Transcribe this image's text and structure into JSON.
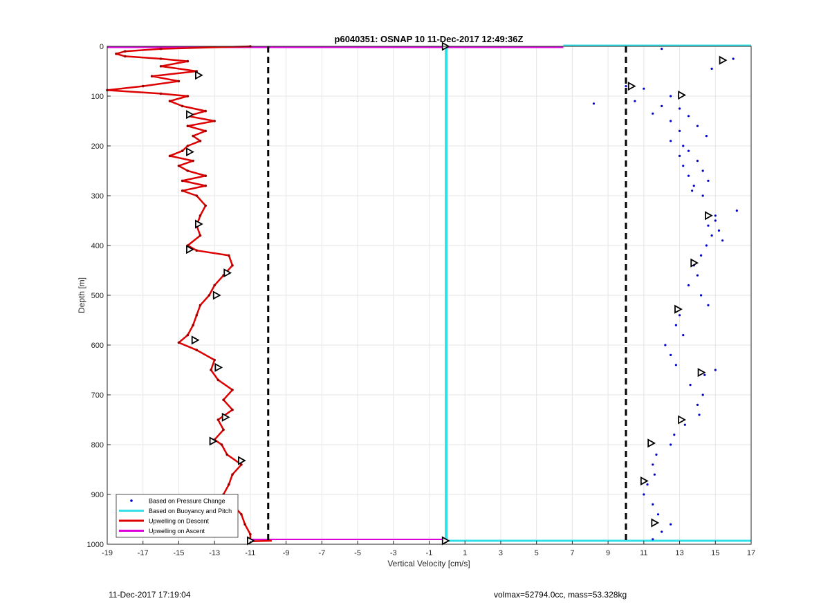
{
  "chart_data": {
    "type": "line",
    "title": "p6040351: OSNAP 10 11-Dec-2017 12:49:36Z",
    "xlabel": "Vertical Velocity [cm/s]",
    "ylabel": "Depth [m]",
    "xlim": [
      -19,
      17
    ],
    "ylim": [
      1000,
      0
    ],
    "y_reversed": true,
    "xticks": [
      -19,
      -17,
      -15,
      -13,
      -11,
      -9,
      -7,
      -5,
      -3,
      -1,
      1,
      3,
      5,
      7,
      9,
      11,
      13,
      15,
      17
    ],
    "yticks": [
      0,
      100,
      200,
      300,
      400,
      500,
      600,
      700,
      800,
      900,
      1000
    ],
    "grid": true,
    "legend_position": "bottom-left",
    "legend": [
      {
        "label": "Based on Pressure Change",
        "color": "#0000cc",
        "style": "dot"
      },
      {
        "label": "Based on Buoyancy and Pitch",
        "color": "#33e0e8",
        "style": "line"
      },
      {
        "label": "Upwelling on Descent",
        "color": "#dd0000",
        "style": "line"
      },
      {
        "label": "Upwelling on Ascent",
        "color": "#dd00dd",
        "style": "line"
      }
    ],
    "reference_lines": [
      {
        "x": -10,
        "color": "#000000",
        "style": "dashed"
      },
      {
        "x": 10,
        "color": "#000000",
        "style": "dashed"
      }
    ],
    "series": [
      {
        "name": "Upwelling on Descent",
        "color": "#dd0000",
        "depth": [
          0,
          5,
          10,
          15,
          20,
          25,
          30,
          40,
          50,
          60,
          70,
          80,
          88,
          95,
          100,
          110,
          120,
          130,
          140,
          150,
          160,
          170,
          180,
          190,
          200,
          210,
          220,
          230,
          240,
          250,
          260,
          270,
          280,
          290,
          300,
          320,
          340,
          360,
          380,
          400,
          410,
          420,
          440,
          460,
          480,
          500,
          520,
          540,
          560,
          580,
          595,
          610,
          630,
          650,
          670,
          690,
          710,
          730,
          750,
          770,
          790,
          800,
          820,
          840,
          860,
          880,
          900,
          920,
          940,
          960,
          980,
          990
        ],
        "velocity": [
          -11,
          -16,
          -18,
          -18.5,
          -18,
          -16,
          -14.5,
          -16,
          -14,
          -16.5,
          -15,
          -17,
          -19,
          -16,
          -14.5,
          -15.5,
          -14.8,
          -13.5,
          -14.5,
          -13,
          -14.5,
          -13.5,
          -14.2,
          -13.8,
          -14.5,
          -14.8,
          -15.5,
          -14.2,
          -15,
          -14.5,
          -13.5,
          -14.8,
          -13.5,
          -14.8,
          -14,
          -13.5,
          -13.8,
          -14,
          -13.8,
          -14.5,
          -14,
          -12.2,
          -12,
          -12.5,
          -13,
          -13.3,
          -13.8,
          -14,
          -14.2,
          -14.5,
          -15,
          -14,
          -13,
          -13.2,
          -12.8,
          -12,
          -12.5,
          -12,
          -12.8,
          -12.5,
          -13,
          -12.6,
          -12.3,
          -11.5,
          -12,
          -12.2,
          -12.5,
          -12,
          -11.5,
          -11.3,
          -11,
          -11
        ],
        "markers": [
          [
            -13.9,
            58
          ],
          [
            -14.4,
            137
          ],
          [
            -14.4,
            212
          ],
          [
            -13.9,
            357
          ],
          [
            -14.4,
            408
          ],
          [
            -12.3,
            455
          ],
          [
            -12.9,
            500
          ],
          [
            -14.1,
            590
          ],
          [
            -12.8,
            645
          ],
          [
            -12.4,
            745
          ],
          [
            -13.1,
            793
          ],
          [
            -11.5,
            832
          ]
        ]
      },
      {
        "name": "Upwelling on Ascent",
        "color": "#dd00dd",
        "depth": [
          0,
          0,
          993,
          993
        ],
        "velocity": [
          -19,
          6.5,
          -11,
          -0.2
        ]
      },
      {
        "name": "Based on Buoyancy and Pitch",
        "color": "#33e0e8",
        "depth": [
          0,
          0,
          993,
          993,
          0
        ],
        "velocity": [
          6.5,
          17,
          -0.2,
          17,
          -0.05
        ]
      },
      {
        "name": "Based on Pressure Change",
        "color": "#0000cc",
        "depth": [
          5,
          25,
          45,
          80,
          85,
          100,
          110,
          115,
          120,
          125,
          135,
          140,
          150,
          160,
          170,
          180,
          190,
          200,
          210,
          220,
          230,
          240,
          250,
          260,
          270,
          280,
          290,
          300,
          330,
          340,
          350,
          360,
          370,
          380,
          390,
          400,
          420,
          440,
          460,
          480,
          500,
          520,
          540,
          560,
          580,
          600,
          620,
          640,
          650,
          660,
          680,
          700,
          720,
          740,
          760,
          780,
          800,
          820,
          840,
          860,
          880,
          900,
          920,
          940,
          960,
          975,
          990
        ],
        "velocity": [
          12,
          16,
          14.8,
          10,
          11,
          12.5,
          10.5,
          8.2,
          12,
          13,
          11.5,
          13.5,
          12.5,
          14,
          13,
          14.5,
          12.5,
          13.2,
          13.5,
          13,
          14,
          13.2,
          14.3,
          13.5,
          14.6,
          13.8,
          13.7,
          14.3,
          16.2,
          15,
          15,
          14.6,
          15.2,
          14.8,
          15.4,
          14.5,
          14.2,
          13.8,
          14,
          13.5,
          14.2,
          14.6,
          13,
          12.8,
          13.2,
          12.2,
          12.5,
          12.8,
          15,
          14.4,
          13.6,
          14.3,
          14,
          14.1,
          13.3,
          12.7,
          12.5,
          11.7,
          11.5,
          11.6,
          11.2,
          11,
          11.5,
          11.8,
          12.5,
          12,
          11.5
        ],
        "markers": [
          [
            15.4,
            28
          ],
          [
            10.3,
            80
          ],
          [
            13.1,
            98
          ],
          [
            14.6,
            340
          ],
          [
            13.8,
            435
          ],
          [
            12.9,
            528
          ],
          [
            14.2,
            655
          ],
          [
            13.1,
            750
          ],
          [
            11.4,
            797
          ],
          [
            11,
            873
          ],
          [
            11.6,
            957
          ]
        ]
      }
    ]
  },
  "footer": {
    "left": "11-Dec-2017 17:19:04",
    "right": "volmax=52794.0cc, mass=53.328kg"
  },
  "colors": {
    "grid": "#e6e6e6",
    "axes": "#262626",
    "background": "#ffffff"
  }
}
